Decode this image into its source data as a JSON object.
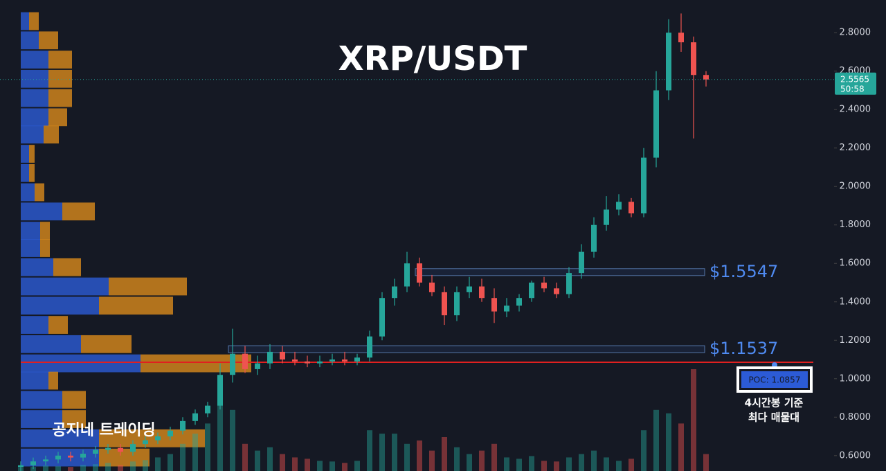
{
  "header": {
    "title": "XRP/USDT",
    "watermark": "공지네 트레이딩"
  },
  "chart_data": {
    "type": "candlestick",
    "up_color": "#26a69a",
    "down_color": "#ef5350",
    "open": [
      0.54,
      0.55,
      0.57,
      0.58,
      0.6,
      0.59,
      0.61,
      0.63,
      0.64,
      0.62,
      0.66,
      0.68,
      0.7,
      0.73,
      0.78,
      0.82,
      0.86,
      1.02,
      1.13,
      1.05,
      1.08,
      1.14,
      1.1,
      1.09,
      1.08,
      1.09,
      1.1,
      1.09,
      1.11,
      1.22,
      1.42,
      1.48,
      1.6,
      1.5,
      1.45,
      1.33,
      1.45,
      1.48,
      1.42,
      1.35,
      1.38,
      1.42,
      1.5,
      1.47,
      1.44,
      1.55,
      1.66,
      1.8,
      1.88,
      1.92,
      1.86,
      2.15,
      2.5,
      2.8,
      2.75,
      2.58
    ],
    "high": [
      0.57,
      0.59,
      0.6,
      0.62,
      0.62,
      0.63,
      0.65,
      0.66,
      0.66,
      0.68,
      0.7,
      0.72,
      0.75,
      0.8,
      0.84,
      0.88,
      1.08,
      1.26,
      1.17,
      1.12,
      1.18,
      1.17,
      1.14,
      1.12,
      1.12,
      1.13,
      1.14,
      1.13,
      1.25,
      1.45,
      1.52,
      1.66,
      1.63,
      1.54,
      1.48,
      1.48,
      1.53,
      1.52,
      1.47,
      1.42,
      1.44,
      1.51,
      1.53,
      1.5,
      1.58,
      1.7,
      1.84,
      1.95,
      1.96,
      1.94,
      2.2,
      2.6,
      2.87,
      2.9,
      2.78,
      2.6
    ],
    "low": [
      0.52,
      0.53,
      0.55,
      0.56,
      0.57,
      0.57,
      0.59,
      0.61,
      0.6,
      0.6,
      0.64,
      0.66,
      0.68,
      0.71,
      0.76,
      0.8,
      0.84,
      0.98,
      1.03,
      1.02,
      1.05,
      1.08,
      1.07,
      1.06,
      1.06,
      1.07,
      1.07,
      1.07,
      1.09,
      1.2,
      1.38,
      1.45,
      1.48,
      1.43,
      1.28,
      1.3,
      1.42,
      1.4,
      1.29,
      1.32,
      1.35,
      1.4,
      1.45,
      1.42,
      1.42,
      1.52,
      1.63,
      1.77,
      1.85,
      1.84,
      1.84,
      2.1,
      2.45,
      2.7,
      2.25,
      2.52
    ],
    "close": [
      0.55,
      0.57,
      0.58,
      0.6,
      0.59,
      0.61,
      0.63,
      0.64,
      0.62,
      0.66,
      0.68,
      0.7,
      0.73,
      0.78,
      0.82,
      0.86,
      1.02,
      1.13,
      1.05,
      1.08,
      1.14,
      1.1,
      1.09,
      1.08,
      1.09,
      1.1,
      1.09,
      1.11,
      1.22,
      1.42,
      1.48,
      1.6,
      1.5,
      1.45,
      1.33,
      1.45,
      1.48,
      1.42,
      1.35,
      1.38,
      1.42,
      1.5,
      1.47,
      1.44,
      1.55,
      1.66,
      1.8,
      1.88,
      1.92,
      1.86,
      2.15,
      2.5,
      2.8,
      2.75,
      2.58,
      2.5565
    ],
    "volume": [
      5,
      6,
      8,
      7,
      6,
      9,
      10,
      12,
      9,
      14,
      16,
      20,
      25,
      40,
      55,
      70,
      110,
      90,
      40,
      30,
      35,
      25,
      20,
      18,
      15,
      14,
      12,
      15,
      60,
      55,
      55,
      40,
      45,
      30,
      50,
      35,
      25,
      30,
      40,
      20,
      18,
      22,
      15,
      14,
      20,
      25,
      30,
      20,
      15,
      18,
      60,
      90,
      85,
      70,
      150,
      25
    ],
    "profile": {
      "price": [
        2.86,
        2.76,
        2.66,
        2.56,
        2.46,
        2.36,
        2.27,
        2.17,
        2.07,
        1.97,
        1.87,
        1.77,
        1.68,
        1.58,
        1.48,
        1.38,
        1.28,
        1.18,
        1.08,
        0.99,
        0.89,
        0.79,
        0.69,
        0.59
      ],
      "buy": [
        12,
        26,
        40,
        40,
        40,
        40,
        33,
        12,
        12,
        20,
        60,
        28,
        28,
        47,
        127,
        113,
        40,
        87,
        173,
        40,
        60,
        60,
        113,
        113
      ],
      "sell": [
        14,
        28,
        34,
        34,
        34,
        27,
        22,
        8,
        8,
        14,
        47,
        14,
        14,
        40,
        113,
        107,
        28,
        73,
        160,
        14,
        34,
        34,
        153,
        73
      ],
      "buy_color": "#2c5bd6",
      "sell_color": "#d9891c"
    },
    "ylim": [
      0.52,
      2.97
    ],
    "yticks": [
      {
        "value": 0.6,
        "label": "0.6000"
      },
      {
        "value": 0.8,
        "label": "0.8000"
      },
      {
        "value": 1.0,
        "label": "1.0000"
      },
      {
        "value": 1.2,
        "label": "1.2000"
      },
      {
        "value": 1.4,
        "label": "1.4000"
      },
      {
        "value": 1.6,
        "label": "1.6000"
      },
      {
        "value": 1.8,
        "label": "1.8000"
      },
      {
        "value": 2.0,
        "label": "2.0000"
      },
      {
        "value": 2.2,
        "label": "2.2000"
      },
      {
        "value": 2.4,
        "label": "2.4000"
      },
      {
        "value": 2.6,
        "label": "2.6000"
      },
      {
        "value": 2.8,
        "label": "2.8000"
      }
    ],
    "last_price": {
      "value": 2.5565,
      "label": "2.5565",
      "countdown": "50:58"
    },
    "levels": [
      {
        "value": 1.5547,
        "label": "$1.5547"
      },
      {
        "value": 1.1537,
        "label": "$1.1537"
      }
    ],
    "poc": {
      "value": 1.0857,
      "label": "POC: 1.0857"
    },
    "note": [
      "4시간봉 기준",
      "최다 매물대"
    ]
  }
}
